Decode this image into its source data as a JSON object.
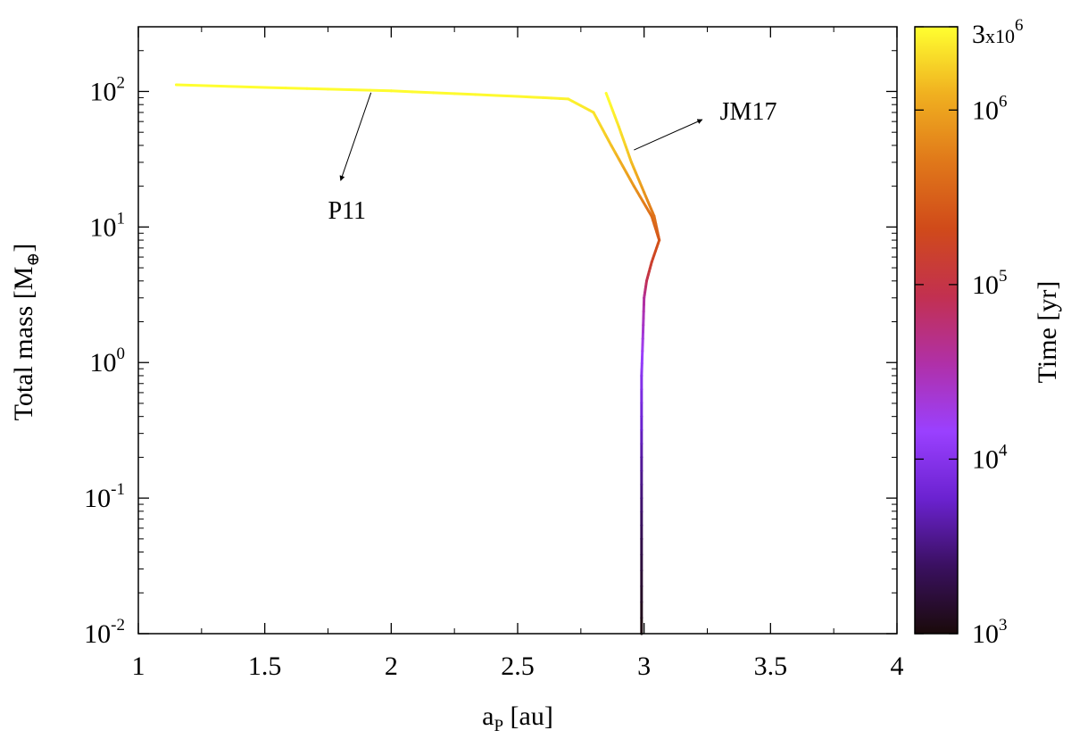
{
  "chart_data": {
    "type": "line",
    "title": "",
    "xlabel": {
      "main": "a",
      "sub": "P",
      "rest": " [au]"
    },
    "ylabel": {
      "main": "Total mass [M",
      "sub": "⊕",
      "rest": "]"
    },
    "xlim": [
      1,
      4
    ],
    "ylim": [
      0.01,
      300
    ],
    "yscale": "log",
    "grid": false,
    "x_ticks": [
      {
        "value": 1,
        "label": "1"
      },
      {
        "value": 1.5,
        "label": "1.5"
      },
      {
        "value": 2,
        "label": "2"
      },
      {
        "value": 2.5,
        "label": "2.5"
      },
      {
        "value": 3,
        "label": "3"
      },
      {
        "value": 3.5,
        "label": "3.5"
      },
      {
        "value": 4,
        "label": "4"
      }
    ],
    "y_ticks": [
      {
        "value": 0.01,
        "base": "10",
        "exp": "-2"
      },
      {
        "value": 0.1,
        "base": "10",
        "exp": "-1"
      },
      {
        "value": 1,
        "base": "10",
        "exp": "0"
      },
      {
        "value": 10,
        "base": "10",
        "exp": "1"
      },
      {
        "value": 100,
        "base": "10",
        "exp": "2"
      }
    ],
    "colorbar": {
      "label": "Time [yr]",
      "scale": "log",
      "range": [
        1000,
        3000000
      ],
      "colors": [
        "#1a0a0a",
        "#3a1060",
        "#6b22d0",
        "#9a40ff",
        "#b030a8",
        "#c23050",
        "#d04a1a",
        "#e0781a",
        "#f0b020",
        "#ffff30"
      ],
      "ticks": [
        {
          "value": 1000,
          "base": "10",
          "exp": "3",
          "prefix": ""
        },
        {
          "value": 10000,
          "base": "10",
          "exp": "4",
          "prefix": ""
        },
        {
          "value": 100000,
          "base": "10",
          "exp": "5",
          "prefix": ""
        },
        {
          "value": 1000000,
          "base": "10",
          "exp": "6",
          "prefix": ""
        },
        {
          "value": 3000000,
          "base": "x10",
          "exp": "6",
          "prefix": "3"
        }
      ]
    },
    "series": [
      {
        "name": "P11",
        "color_by_time": true,
        "points": [
          {
            "a": 2.99,
            "m": 0.01,
            "t": 1000
          },
          {
            "a": 2.99,
            "m": 0.05,
            "t": 2000
          },
          {
            "a": 2.99,
            "m": 0.2,
            "t": 4000
          },
          {
            "a": 2.99,
            "m": 0.8,
            "t": 10000
          },
          {
            "a": 2.995,
            "m": 1.5,
            "t": 20000
          },
          {
            "a": 3.0,
            "m": 3.0,
            "t": 40000
          },
          {
            "a": 3.01,
            "m": 4.0,
            "t": 80000
          },
          {
            "a": 3.03,
            "m": 5.5,
            "t": 150000
          },
          {
            "a": 3.06,
            "m": 8.0,
            "t": 250000
          },
          {
            "a": 3.03,
            "m": 12.0,
            "t": 400000
          },
          {
            "a": 2.96,
            "m": 20.0,
            "t": 800000
          },
          {
            "a": 2.87,
            "m": 40.0,
            "t": 1500000
          },
          {
            "a": 2.8,
            "m": 70.0,
            "t": 2200000
          },
          {
            "a": 2.7,
            "m": 88.0,
            "t": 2600000
          },
          {
            "a": 2.5,
            "m": 92.0,
            "t": 2800000
          },
          {
            "a": 2.0,
            "m": 101.0,
            "t": 2900000
          },
          {
            "a": 1.5,
            "m": 107.0,
            "t": 2950000
          },
          {
            "a": 1.15,
            "m": 112.0,
            "t": 3000000
          }
        ]
      },
      {
        "name": "JM17",
        "color_by_time": true,
        "points": [
          {
            "a": 3.06,
            "m": 8.0,
            "t": 250000
          },
          {
            "a": 3.04,
            "m": 12.0,
            "t": 450000
          },
          {
            "a": 3.0,
            "m": 18.0,
            "t": 800000
          },
          {
            "a": 2.95,
            "m": 30.0,
            "t": 1400000
          },
          {
            "a": 2.9,
            "m": 55.0,
            "t": 2200000
          },
          {
            "a": 2.85,
            "m": 97.0,
            "t": 3000000
          }
        ]
      }
    ],
    "annotations": [
      {
        "text": "P11",
        "label_at": {
          "a": 1.75,
          "m": 11.5
        },
        "arrow_from": {
          "a": 1.92,
          "m": 98
        },
        "arrow_to": {
          "a": 1.8,
          "m": 22
        }
      },
      {
        "text": "JM17",
        "label_at": {
          "a": 3.3,
          "m": 62
        },
        "arrow_from": {
          "a": 2.96,
          "m": 37
        },
        "arrow_to": {
          "a": 3.23,
          "m": 62
        }
      }
    ]
  }
}
